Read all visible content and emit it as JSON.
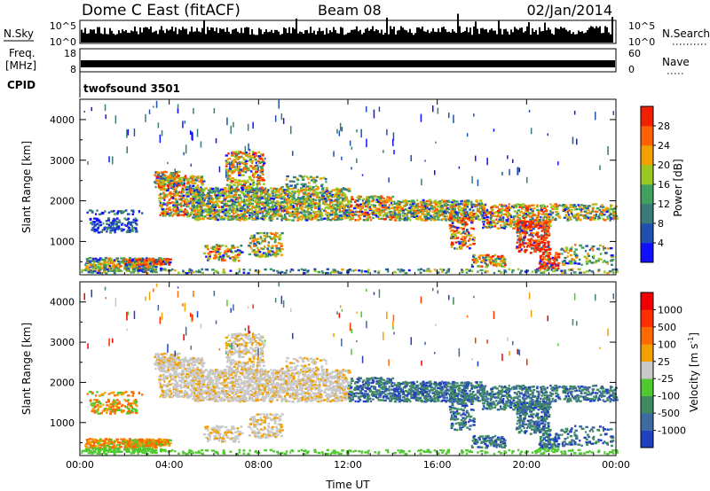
{
  "header": {
    "title": "Dome C East (fitACF)",
    "beam": "Beam 08",
    "date": "02/Jan/2014"
  },
  "panels": {
    "nsky": {
      "left_label": "N.Sky",
      "left_ticks": [
        "10^5",
        "10^0"
      ],
      "right_ticks": [
        "10^5",
        "10^0"
      ],
      "right_label": "N.Search",
      "level": 0.55
    },
    "freq": {
      "left_label_1": "Freq.",
      "left_label_2": "[MHz]",
      "left_ticks": [
        "18",
        "8"
      ],
      "right_ticks": [
        "60",
        "0"
      ],
      "right_label": "Nave",
      "level": 0.35
    },
    "cpid": {
      "label": "CPID",
      "value": "twofsound 3501"
    }
  },
  "chart_data": [
    {
      "type": "heatmap",
      "title": "",
      "xlabel": "",
      "ylabel": "Slant Range [km]",
      "x_ticks": [
        "00:00",
        "04:00",
        "08:00",
        "12:00",
        "16:00",
        "20:00",
        "00:00"
      ],
      "y_ticks": [
        1000,
        2000,
        3000,
        4000
      ],
      "xlim_hours": [
        0,
        24
      ],
      "ylim_km": [
        180,
        4500
      ],
      "colorbar": {
        "label": "Power [dB]",
        "ticks": [
          "4",
          "8",
          "12",
          "16",
          "20",
          "24",
          "28"
        ],
        "colors": [
          "#1010ff",
          "#2050b0",
          "#3a7a78",
          "#3fa060",
          "#9ac820",
          "#f0a000",
          "#ff6000",
          "#f02000"
        ]
      }
    },
    {
      "type": "heatmap",
      "title": "",
      "xlabel": "Time UT",
      "ylabel": "Slant Range [km]",
      "x_ticks": [
        "00:00",
        "04:00",
        "08:00",
        "12:00",
        "16:00",
        "20:00",
        "00:00"
      ],
      "y_ticks": [
        1000,
        2000,
        3000,
        4000
      ],
      "xlim_hours": [
        0,
        24
      ],
      "ylim_km": [
        180,
        4500
      ],
      "colorbar": {
        "label": "Velocity [m s",
        "label_sup": "-1",
        "label_end": "]",
        "ticks": [
          "1000",
          "500",
          "100",
          "25",
          "-25",
          "-100",
          "-500",
          "-1000"
        ],
        "colors": [
          "#2040c0",
          "#3f6aa0",
          "#3f8a60",
          "#50c830",
          "#c8c8c8",
          "#f0a000",
          "#ff6a00",
          "#ff3000",
          "#f00000"
        ]
      }
    }
  ]
}
